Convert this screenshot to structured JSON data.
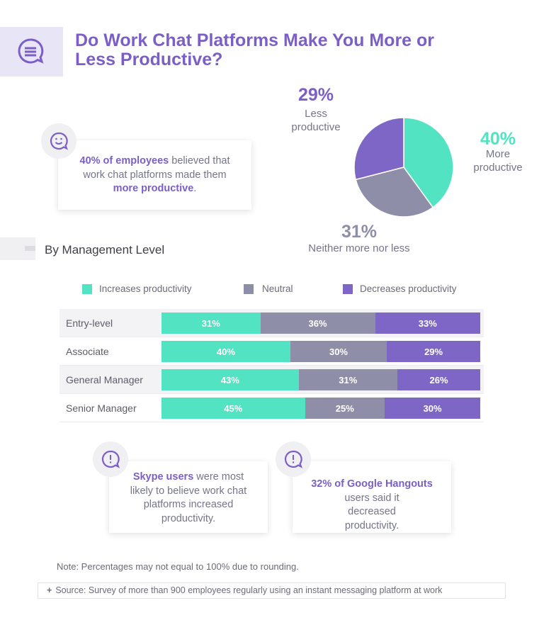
{
  "header": {
    "title_line1": "Do Work Chat Platforms Make You More or",
    "title_line2": "Less Productive?",
    "icon": "chat-bubble-icon"
  },
  "callout_top": {
    "icon": "smiley-chat-icon",
    "bold1": "40% of employees",
    "text1": " believed that work chat platforms made them ",
    "bold2": "more productive",
    "text2": "."
  },
  "colors": {
    "increase": "#52e3c2",
    "neutral": "#8e8ea8",
    "decrease": "#7e66c6",
    "title": "#7b5fc7"
  },
  "chart_data": [
    {
      "type": "pie",
      "slices": [
        {
          "label": "More productive",
          "value": 40,
          "pct_label": "40%",
          "label_lines": [
            "More",
            "productive"
          ]
        },
        {
          "label": "Neither more nor less",
          "value": 31,
          "pct_label": "31%",
          "label_lines": [
            "Neither more nor less"
          ]
        },
        {
          "label": "Less productive",
          "value": 29,
          "pct_label": "29%",
          "label_lines": [
            "Less",
            "productive"
          ]
        }
      ]
    },
    {
      "type": "bar",
      "orientation": "horizontal",
      "stacked": true,
      "title": "By Management Level",
      "categories": [
        "Entry-level",
        "Associate",
        "General Manager",
        "Senior Manager"
      ],
      "series": [
        {
          "name": "Increases productivity",
          "values": [
            31,
            40,
            43,
            45
          ],
          "labels": [
            "31%",
            "40%",
            "43%",
            "45%"
          ]
        },
        {
          "name": "Neutral",
          "values": [
            36,
            30,
            31,
            25
          ],
          "labels": [
            "36%",
            "30%",
            "31%",
            "25%"
          ]
        },
        {
          "name": "Decreases productivity",
          "values": [
            33,
            29,
            26,
            30
          ],
          "labels": [
            "33%",
            "29%",
            "26%",
            "30%"
          ]
        }
      ],
      "legend": "top"
    }
  ],
  "callout_skype": {
    "icon": "exclamation-chat-icon",
    "bold": "Skype users",
    "text": " were most likely to believe work chat platforms increased productivity."
  },
  "callout_hangouts": {
    "icon": "exclamation-chat-icon",
    "bold": "32% of Google Hangouts",
    "text": "users said it decreased productivity."
  },
  "note": "Note: Percentages may not equal to 100% due to rounding.",
  "source": {
    "icon": "plus-icon",
    "text": "Source: Survey of more than 900 employees regularly using an instant messaging platform at work"
  }
}
